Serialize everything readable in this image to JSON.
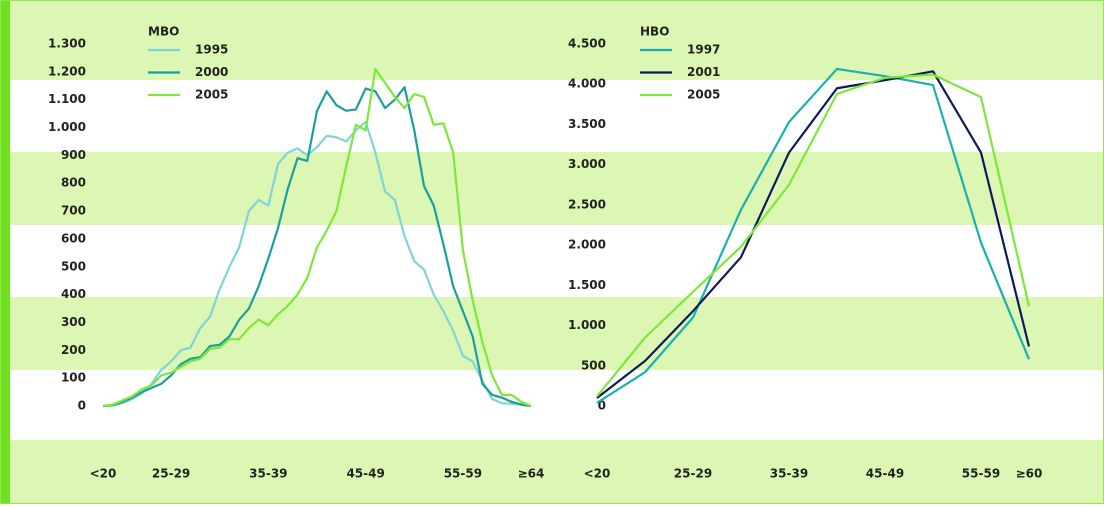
{
  "chart_data": [
    {
      "type": "line",
      "legend_title": "MBO",
      "categories": [
        "<20",
        null,
        null,
        null,
        null,
        null,
        null,
        "25-29",
        null,
        null,
        null,
        null,
        null,
        null,
        null,
        null,
        null,
        "35-39",
        null,
        null,
        null,
        null,
        null,
        null,
        null,
        null,
        null,
        "45-49",
        null,
        null,
        null,
        null,
        null,
        null,
        null,
        null,
        null,
        "55-59",
        null,
        null,
        null,
        null,
        null,
        null,
        "≥64"
      ],
      "ylim": [
        0,
        1300
      ],
      "yticks": [
        0,
        100,
        200,
        300,
        400,
        500,
        600,
        700,
        800,
        900,
        {
          "value": 1000,
          "label": "1.000"
        },
        {
          "value": 1100,
          "label": "1.100"
        },
        {
          "value": 1200,
          "label": "1.200"
        },
        {
          "value": 1300,
          "label": "1.300"
        }
      ],
      "series": [
        {
          "name": "1995",
          "color": "#80d4d8",
          "values": [
            0,
            2,
            10,
            25,
            45,
            80,
            130,
            160,
            200,
            210,
            280,
            320,
            420,
            500,
            570,
            700,
            740,
            720,
            870,
            910,
            925,
            900,
            930,
            970,
            965,
            950,
            990,
            1020,
            910,
            770,
            740,
            610,
            520,
            490,
            400,
            340,
            270,
            180,
            160,
            90,
            25,
            10,
            8,
            5,
            0
          ]
        },
        {
          "name": "2000",
          "color": "#1a9e9e",
          "values": [
            0,
            3,
            15,
            30,
            50,
            65,
            80,
            110,
            150,
            170,
            175,
            215,
            220,
            250,
            310,
            350,
            430,
            530,
            640,
            780,
            890,
            880,
            1060,
            1130,
            1080,
            1060,
            1065,
            1140,
            1130,
            1070,
            1100,
            1145,
            990,
            790,
            720,
            580,
            430,
            340,
            250,
            80,
            40,
            30,
            15,
            5,
            0
          ]
        },
        {
          "name": "2005",
          "color": "#7ee83a",
          "values": [
            0,
            5,
            20,
            35,
            60,
            75,
            110,
            120,
            140,
            160,
            170,
            205,
            210,
            240,
            240,
            280,
            310,
            290,
            330,
            360,
            400,
            460,
            570,
            630,
            700,
            860,
            1010,
            990,
            1210,
            1160,
            1110,
            1070,
            1120,
            1110,
            1010,
            1015,
            910,
            560,
            380,
            230,
            110,
            40,
            40,
            15,
            0
          ]
        }
      ]
    },
    {
      "type": "line",
      "legend_title": "HBO",
      "categories": [
        "<20",
        null,
        "25-29",
        null,
        "35-39",
        null,
        "45-49",
        null,
        "55-59",
        "≥60"
      ],
      "ylim": [
        0,
        4500
      ],
      "yticks": [
        0,
        500,
        {
          "value": 1000,
          "label": "1.000"
        },
        {
          "value": 1500,
          "label": "1.500"
        },
        {
          "value": 2000,
          "label": "2.000"
        },
        {
          "value": 2500,
          "label": "2.500"
        },
        {
          "value": 3000,
          "label": "3.000"
        },
        {
          "value": 3500,
          "label": "3.500"
        },
        {
          "value": 4000,
          "label": "4.000"
        },
        {
          "value": 4500,
          "label": "4.500"
        }
      ],
      "series": [
        {
          "name": "1997",
          "color": "#1ab0b0",
          "values": [
            40,
            420,
            1100,
            2440,
            3530,
            4190,
            4100,
            3990,
            2030,
            580
          ]
        },
        {
          "name": "2001",
          "color": "#0d1a5c",
          "values": [
            100,
            560,
            1180,
            1850,
            3150,
            3950,
            4050,
            4160,
            3150,
            740
          ]
        },
        {
          "name": "2005",
          "color": "#7ee83a",
          "values": [
            120,
            850,
            1420,
            1980,
            2750,
            3880,
            4080,
            4120,
            3840,
            1240
          ]
        }
      ]
    }
  ]
}
